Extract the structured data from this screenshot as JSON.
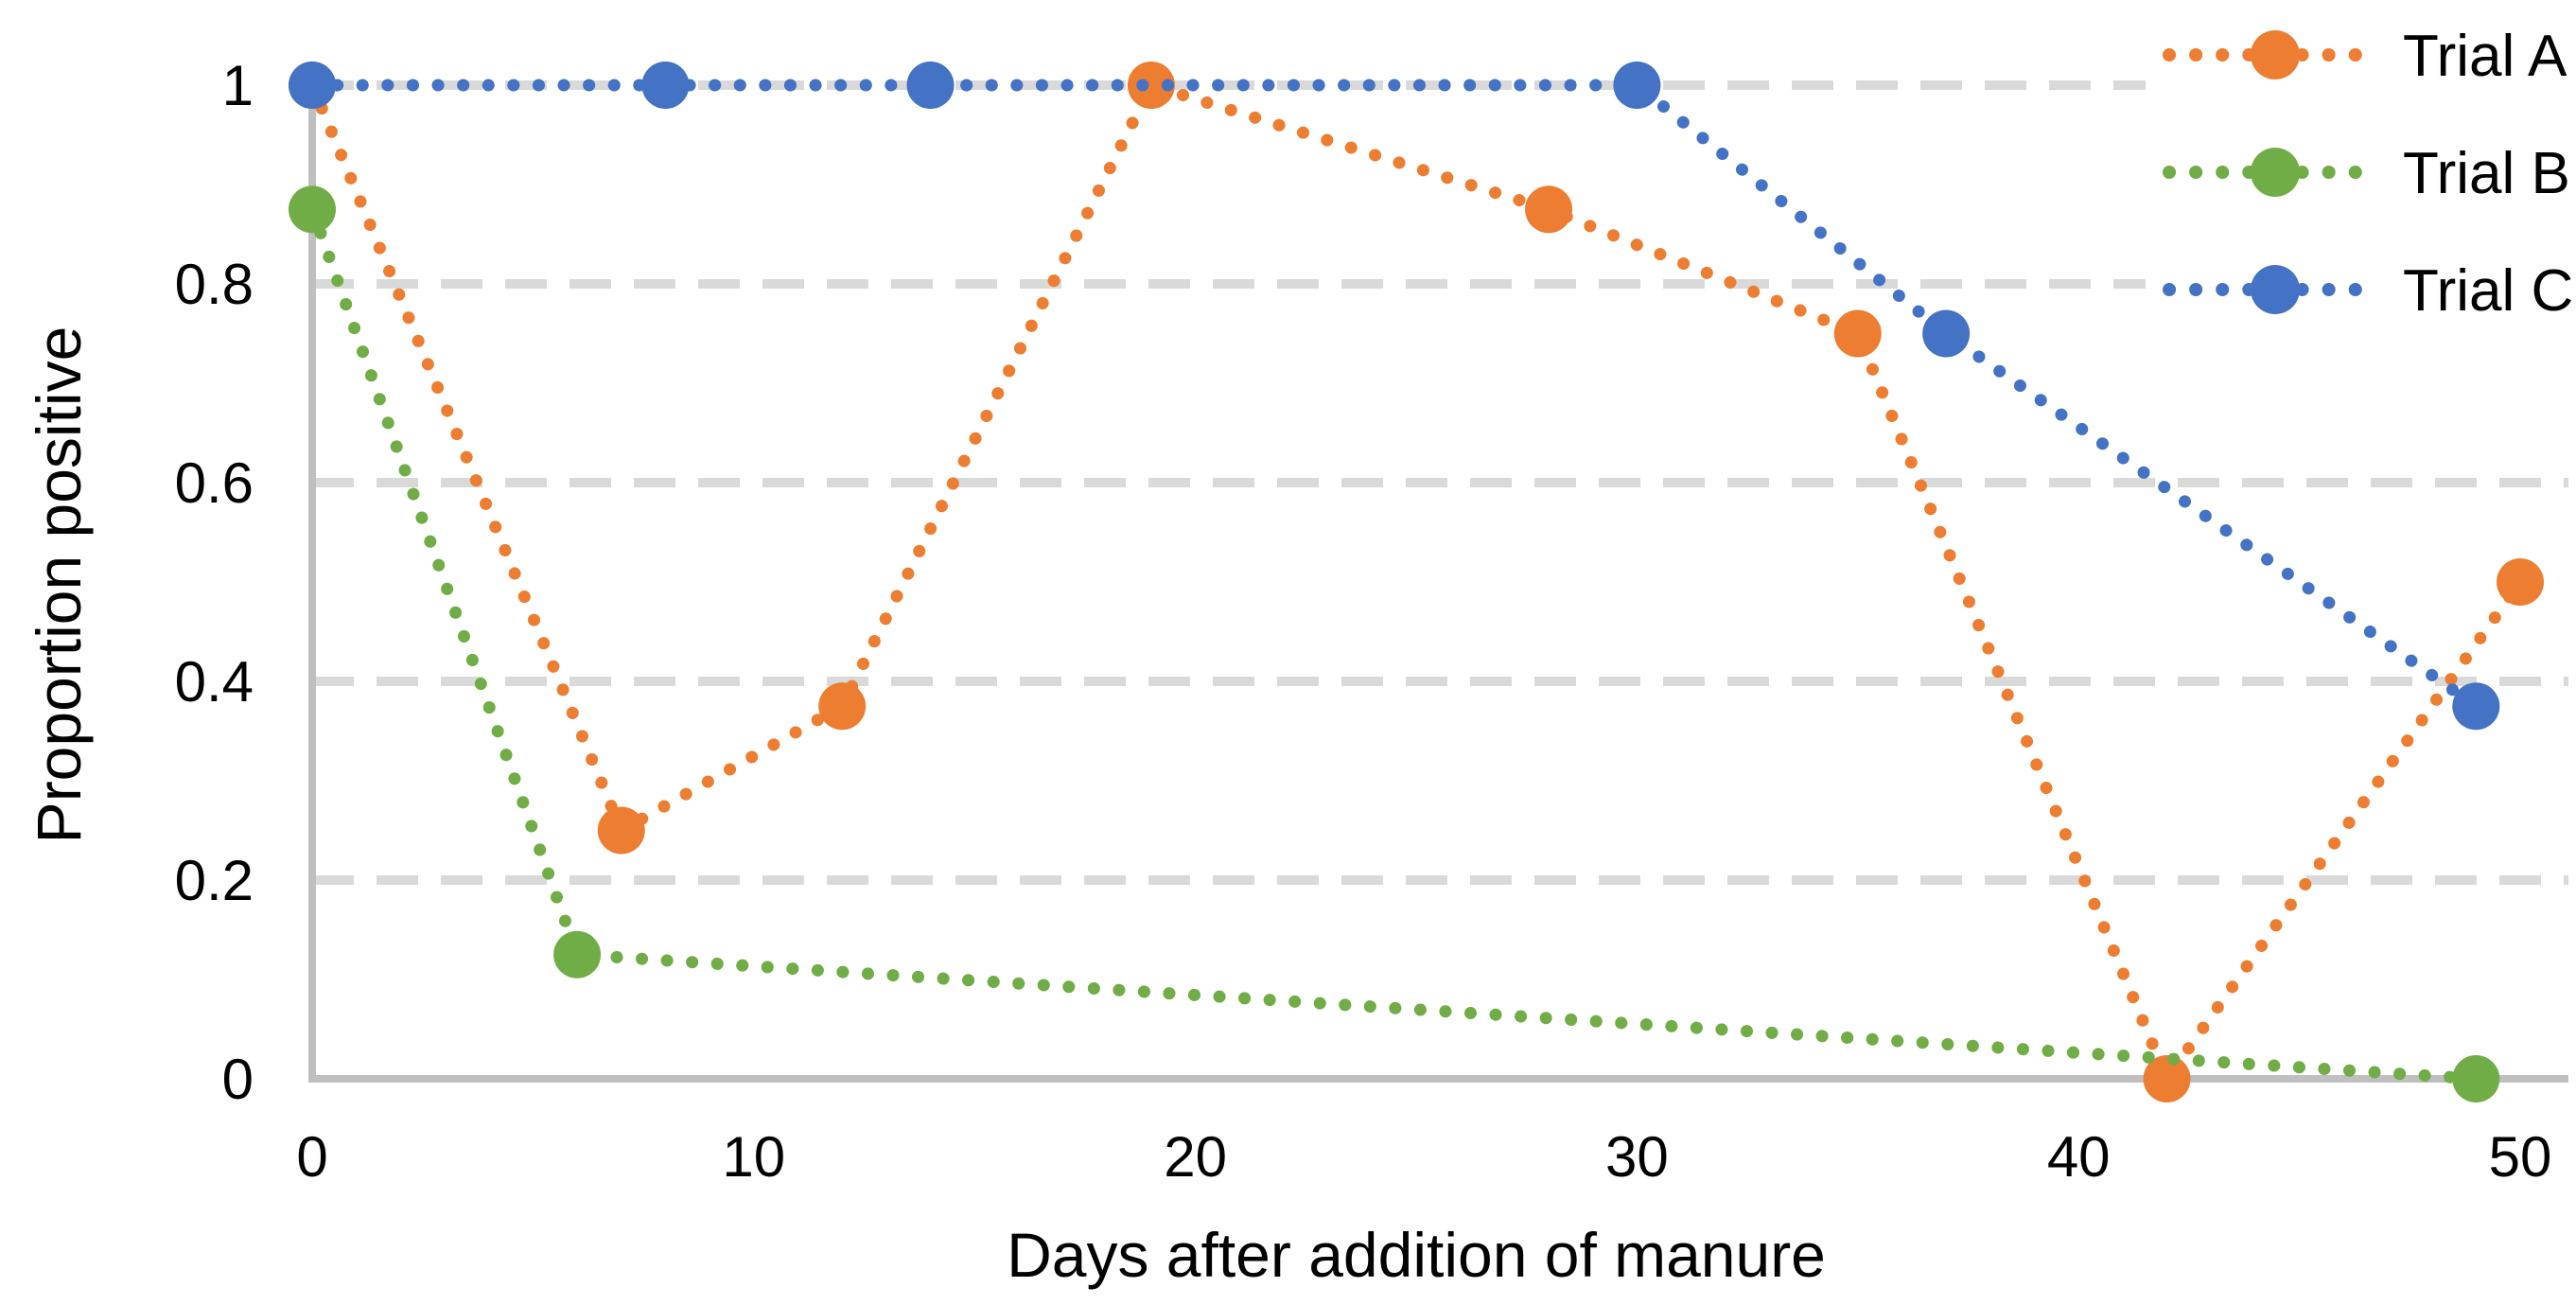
{
  "chart_data": {
    "type": "line",
    "title": "",
    "xlabel": "Days after addition of manure",
    "ylabel": "Proportion positive",
    "xlim": [
      0,
      50
    ],
    "ylim": [
      0,
      1
    ],
    "x_ticks": [
      0,
      10,
      20,
      30,
      40,
      50
    ],
    "x_tick_labels": [
      "0",
      "10",
      "20",
      "30",
      "40",
      "50"
    ],
    "y_ticks": [
      0,
      0.2,
      0.4,
      0.6,
      0.8,
      1
    ],
    "y_tick_labels": [
      "0",
      "0.2",
      "0.4",
      "0.6",
      "0.8",
      "1"
    ],
    "grid": "horizontal dashed gridlines at each y tick",
    "line_style": "dotted lines with large round markers",
    "legend_position": "top-right overlay on white box",
    "series": [
      {
        "name": "Trial A",
        "color": "#ED7D31",
        "points": [
          [
            0,
            1
          ],
          [
            7,
            0.25
          ],
          [
            12,
            0.375
          ],
          [
            19,
            1
          ],
          [
            28,
            0.875
          ],
          [
            35,
            0.75
          ],
          [
            42,
            0
          ],
          [
            50,
            0.5
          ]
        ]
      },
      {
        "name": "Trial B",
        "color": "#70AD47",
        "points": [
          [
            0,
            0.875
          ],
          [
            6,
            0.125
          ],
          [
            49,
            0
          ]
        ]
      },
      {
        "name": "Trial C",
        "color": "#4472C4",
        "points": [
          [
            0,
            1
          ],
          [
            8,
            1
          ],
          [
            14,
            1
          ],
          [
            30,
            1
          ],
          [
            37,
            0.75
          ],
          [
            49,
            0.375
          ]
        ]
      }
    ],
    "colors": {
      "gridline": "#D9D9D9",
      "axis": "#BFBFBF",
      "text": "#000000",
      "background": "#FFFFFF"
    }
  }
}
